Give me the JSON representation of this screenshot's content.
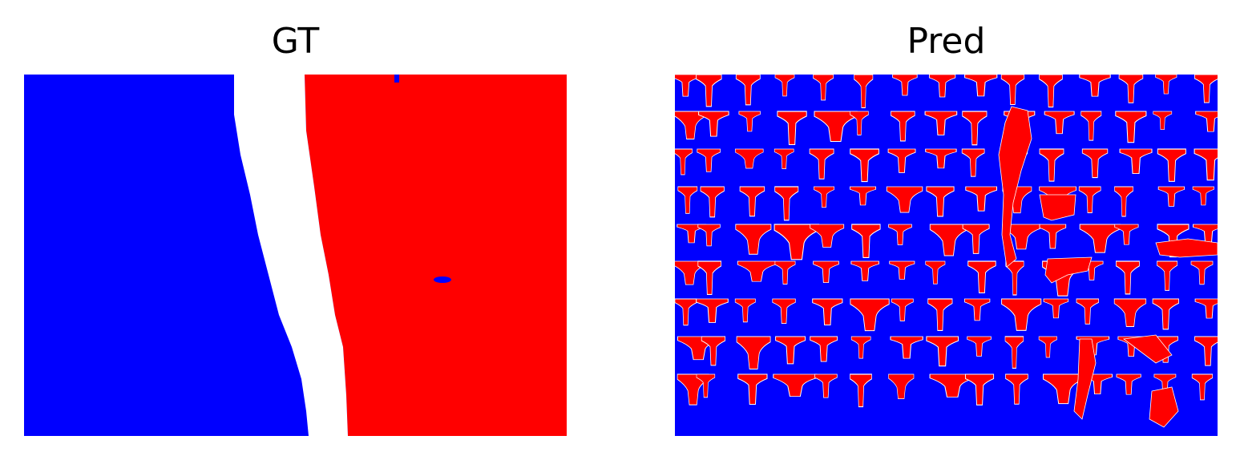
{
  "figure": {
    "panels": [
      {
        "title": "GT"
      },
      {
        "title": "Pred"
      }
    ]
  },
  "colors": {
    "class_a": "#0000ff",
    "class_b": "#ff0000",
    "ignore": "#ffffff"
  }
}
